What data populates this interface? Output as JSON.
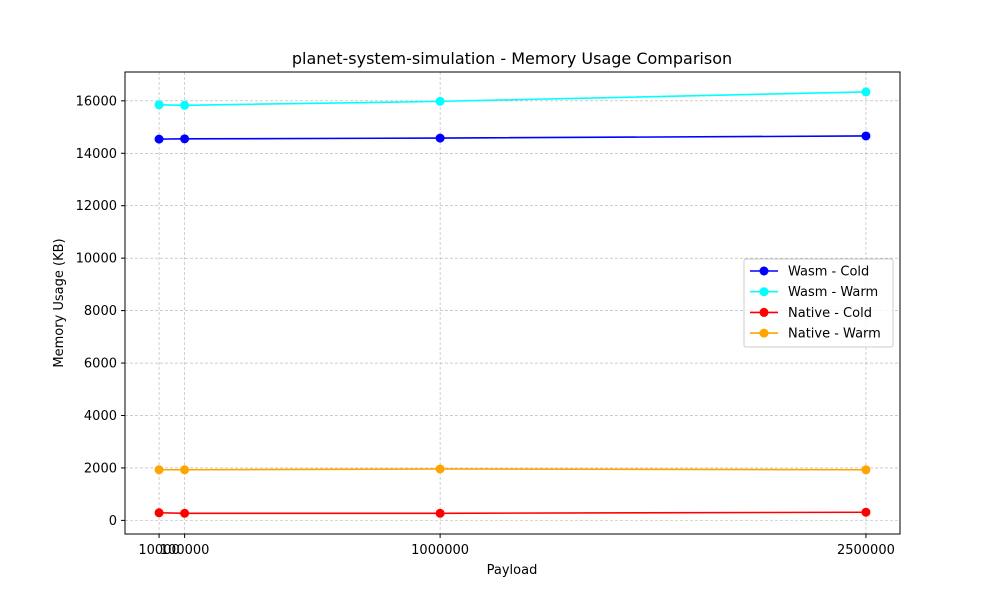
{
  "chart_data": {
    "type": "line",
    "title": "planet-system-simulation - Memory Usage Comparison",
    "xlabel": "Payload",
    "ylabel": "Memory Usage (KB)",
    "x": [
      10000,
      100000,
      1000000,
      2500000
    ],
    "x_tick_labels": [
      "10000",
      "100000",
      "1000000",
      "2500000"
    ],
    "xlim": [
      -110000,
      2620000
    ],
    "ylim": [
      -520,
      17100
    ],
    "y_ticks": [
      0,
      2000,
      4000,
      6000,
      8000,
      10000,
      12000,
      14000,
      16000
    ],
    "grid": true,
    "legend_position": "center-right",
    "series": [
      {
        "name": "Wasm - Cold",
        "color": "#0000ff",
        "values": [
          14540,
          14550,
          14580,
          14660
        ]
      },
      {
        "name": "Wasm - Warm",
        "color": "#00ffff",
        "values": [
          15850,
          15830,
          15980,
          16340
        ]
      },
      {
        "name": "Native - Cold",
        "color": "#ff0000",
        "values": [
          290,
          270,
          270,
          310
        ]
      },
      {
        "name": "Native - Warm",
        "color": "#ffa500",
        "values": [
          1930,
          1930,
          1960,
          1930
        ]
      }
    ]
  }
}
